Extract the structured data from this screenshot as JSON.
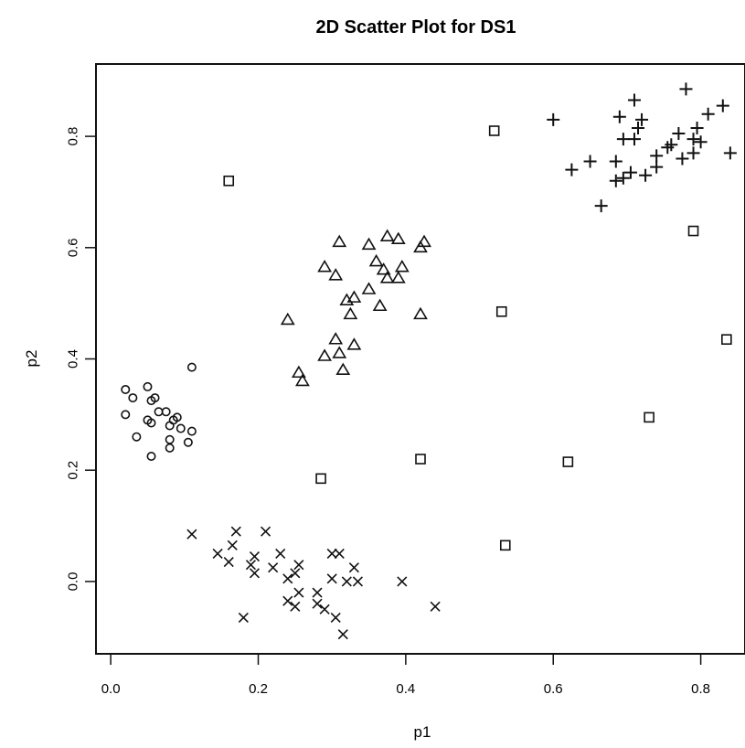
{
  "chart_data": {
    "type": "scatter",
    "title": "2D Scatter Plot for DS1",
    "xlabel": "p1",
    "ylabel": "p2",
    "xlim": [
      -0.02,
      0.86
    ],
    "ylim": [
      -0.13,
      0.93
    ],
    "xticks": [
      0.0,
      0.2,
      0.4,
      0.6,
      0.8
    ],
    "yticks": [
      0.0,
      0.2,
      0.4,
      0.6,
      0.8
    ],
    "xtick_labels": [
      "0.0",
      "0.2",
      "0.4",
      "0.6",
      "0.8"
    ],
    "ytick_labels": [
      "0.0",
      "0.2",
      "0.4",
      "0.6",
      "0.8"
    ],
    "grid": false,
    "legend": "none",
    "series": [
      {
        "marker": "circle",
        "points": [
          [
            0.02,
            0.345
          ],
          [
            0.05,
            0.35
          ],
          [
            0.03,
            0.33
          ],
          [
            0.055,
            0.325
          ],
          [
            0.06,
            0.33
          ],
          [
            0.02,
            0.3
          ],
          [
            0.065,
            0.305
          ],
          [
            0.075,
            0.305
          ],
          [
            0.05,
            0.29
          ],
          [
            0.085,
            0.29
          ],
          [
            0.09,
            0.295
          ],
          [
            0.08,
            0.28
          ],
          [
            0.055,
            0.285
          ],
          [
            0.095,
            0.275
          ],
          [
            0.11,
            0.27
          ],
          [
            0.035,
            0.26
          ],
          [
            0.08,
            0.255
          ],
          [
            0.105,
            0.25
          ],
          [
            0.08,
            0.24
          ],
          [
            0.055,
            0.225
          ],
          [
            0.11,
            0.385
          ]
        ]
      },
      {
        "marker": "triangle",
        "points": [
          [
            0.24,
            0.47
          ],
          [
            0.31,
            0.61
          ],
          [
            0.29,
            0.565
          ],
          [
            0.305,
            0.55
          ],
          [
            0.35,
            0.605
          ],
          [
            0.375,
            0.62
          ],
          [
            0.39,
            0.615
          ],
          [
            0.425,
            0.61
          ],
          [
            0.42,
            0.6
          ],
          [
            0.36,
            0.575
          ],
          [
            0.37,
            0.56
          ],
          [
            0.395,
            0.565
          ],
          [
            0.375,
            0.545
          ],
          [
            0.39,
            0.545
          ],
          [
            0.35,
            0.525
          ],
          [
            0.33,
            0.51
          ],
          [
            0.32,
            0.505
          ],
          [
            0.365,
            0.495
          ],
          [
            0.325,
            0.48
          ],
          [
            0.42,
            0.48
          ],
          [
            0.305,
            0.435
          ],
          [
            0.33,
            0.425
          ],
          [
            0.29,
            0.405
          ],
          [
            0.31,
            0.41
          ],
          [
            0.255,
            0.375
          ],
          [
            0.315,
            0.38
          ],
          [
            0.26,
            0.36
          ]
        ]
      },
      {
        "marker": "plus",
        "points": [
          [
            0.6,
            0.83
          ],
          [
            0.71,
            0.865
          ],
          [
            0.78,
            0.885
          ],
          [
            0.83,
            0.855
          ],
          [
            0.69,
            0.835
          ],
          [
            0.72,
            0.83
          ],
          [
            0.81,
            0.84
          ],
          [
            0.715,
            0.815
          ],
          [
            0.77,
            0.805
          ],
          [
            0.795,
            0.815
          ],
          [
            0.695,
            0.795
          ],
          [
            0.71,
            0.795
          ],
          [
            0.76,
            0.785
          ],
          [
            0.79,
            0.795
          ],
          [
            0.8,
            0.79
          ],
          [
            0.755,
            0.78
          ],
          [
            0.79,
            0.77
          ],
          [
            0.84,
            0.77
          ],
          [
            0.685,
            0.755
          ],
          [
            0.74,
            0.765
          ],
          [
            0.65,
            0.755
          ],
          [
            0.775,
            0.76
          ],
          [
            0.625,
            0.74
          ],
          [
            0.705,
            0.735
          ],
          [
            0.74,
            0.745
          ],
          [
            0.685,
            0.72
          ],
          [
            0.695,
            0.725
          ],
          [
            0.725,
            0.73
          ],
          [
            0.665,
            0.675
          ]
        ]
      },
      {
        "marker": "cross",
        "points": [
          [
            0.11,
            0.085
          ],
          [
            0.17,
            0.09
          ],
          [
            0.21,
            0.09
          ],
          [
            0.165,
            0.065
          ],
          [
            0.145,
            0.05
          ],
          [
            0.195,
            0.045
          ],
          [
            0.23,
            0.05
          ],
          [
            0.16,
            0.035
          ],
          [
            0.19,
            0.03
          ],
          [
            0.22,
            0.025
          ],
          [
            0.3,
            0.05
          ],
          [
            0.31,
            0.05
          ],
          [
            0.33,
            0.025
          ],
          [
            0.255,
            0.03
          ],
          [
            0.25,
            0.015
          ],
          [
            0.195,
            0.015
          ],
          [
            0.24,
            0.005
          ],
          [
            0.3,
            0.005
          ],
          [
            0.32,
            0.0
          ],
          [
            0.335,
            0.0
          ],
          [
            0.395,
            0.0
          ],
          [
            0.255,
            -0.02
          ],
          [
            0.28,
            -0.02
          ],
          [
            0.24,
            -0.035
          ],
          [
            0.25,
            -0.045
          ],
          [
            0.28,
            -0.04
          ],
          [
            0.29,
            -0.05
          ],
          [
            0.305,
            -0.065
          ],
          [
            0.18,
            -0.065
          ],
          [
            0.44,
            -0.045
          ],
          [
            0.315,
            -0.095
          ]
        ]
      },
      {
        "marker": "square",
        "points": [
          [
            0.16,
            0.72
          ],
          [
            0.52,
            0.81
          ],
          [
            0.79,
            0.63
          ],
          [
            0.53,
            0.485
          ],
          [
            0.835,
            0.435
          ],
          [
            0.73,
            0.295
          ],
          [
            0.42,
            0.22
          ],
          [
            0.62,
            0.215
          ],
          [
            0.285,
            0.185
          ],
          [
            0.535,
            0.065
          ]
        ]
      }
    ]
  }
}
